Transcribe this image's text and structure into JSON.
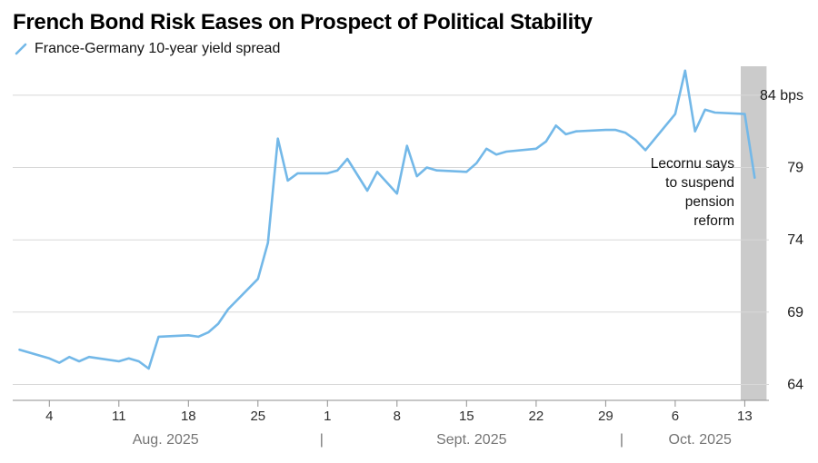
{
  "chart_data": {
    "type": "line",
    "title": "French Bond Risk Eases on Prospect of Political Stability",
    "legend": [
      {
        "label": "France-Germany 10-year yield spread",
        "color": "#73b8e8"
      }
    ],
    "unit": "bps",
    "ylim": [
      62.9,
      86.0
    ],
    "x_axis": {
      "start_date": "2025-08-01",
      "unit": "days_since_start"
    },
    "yticks": [
      {
        "value": 64,
        "label": "64"
      },
      {
        "value": 69,
        "label": "69"
      },
      {
        "value": 74,
        "label": "74"
      },
      {
        "value": 79,
        "label": "79"
      },
      {
        "value": 84,
        "label": "84 bps"
      }
    ],
    "xticks": [
      {
        "day": 3,
        "label": "4"
      },
      {
        "day": 10,
        "label": "11"
      },
      {
        "day": 17,
        "label": "18"
      },
      {
        "day": 24,
        "label": "25"
      },
      {
        "day": 31,
        "label": "1"
      },
      {
        "day": 38,
        "label": "8"
      },
      {
        "day": 45,
        "label": "15"
      },
      {
        "day": 52,
        "label": "22"
      },
      {
        "day": 59,
        "label": "29"
      },
      {
        "day": 66,
        "label": "6"
      },
      {
        "day": 73,
        "label": "13"
      }
    ],
    "month_labels": [
      {
        "day_center": 14.7,
        "label": "Aug. 2025"
      },
      {
        "day_center": 45.5,
        "label": "Sept. 2025"
      },
      {
        "day_center": 68.5,
        "label": "Oct. 2025"
      }
    ],
    "month_separators": [
      30.4,
      60.6
    ],
    "highlight_band": {
      "day_start": 72.6,
      "day_end": 75.2
    },
    "annotation": {
      "lines": [
        "Lecornu says",
        "to suspend",
        "pension",
        "reform"
      ]
    },
    "colors": {
      "line": "#73b8e8",
      "grid": "#d8d8d8",
      "axis": "#8f8f8f",
      "band": "#cbcbcb",
      "tick_text": "#2e2e2e",
      "y_text": "#1a1a1a",
      "month_text": "#757575",
      "annotation_text": "#111111"
    },
    "series": [
      {
        "name": "France-Germany 10-year yield spread",
        "color": "#73b8e8",
        "points": [
          [
            0,
            66.4
          ],
          [
            3,
            65.8
          ],
          [
            4,
            65.5
          ],
          [
            5,
            65.9
          ],
          [
            6,
            65.6
          ],
          [
            7,
            65.9
          ],
          [
            10,
            65.6
          ],
          [
            11,
            65.8
          ],
          [
            12,
            65.6
          ],
          [
            13,
            65.1
          ],
          [
            14,
            67.3
          ],
          [
            17,
            67.4
          ],
          [
            18,
            67.3
          ],
          [
            19,
            67.6
          ],
          [
            20,
            68.2
          ],
          [
            21,
            69.2
          ],
          [
            24,
            71.3
          ],
          [
            25,
            73.8
          ],
          [
            26,
            81.0
          ],
          [
            27,
            78.1
          ],
          [
            28,
            78.6
          ],
          [
            31,
            78.6
          ],
          [
            32,
            78.8
          ],
          [
            33,
            79.6
          ],
          [
            35,
            77.4
          ],
          [
            36,
            78.7
          ],
          [
            38,
            77.2
          ],
          [
            39,
            80.5
          ],
          [
            40,
            78.4
          ],
          [
            41,
            79.0
          ],
          [
            42,
            78.8
          ],
          [
            45,
            78.7
          ],
          [
            46,
            79.3
          ],
          [
            47,
            80.3
          ],
          [
            48,
            79.9
          ],
          [
            49,
            80.1
          ],
          [
            52,
            80.3
          ],
          [
            53,
            80.8
          ],
          [
            54,
            81.9
          ],
          [
            55,
            81.3
          ],
          [
            56,
            81.5
          ],
          [
            59,
            81.6
          ],
          [
            60,
            81.6
          ],
          [
            61,
            81.4
          ],
          [
            62,
            80.9
          ],
          [
            63,
            80.2
          ],
          [
            66,
            82.7
          ],
          [
            67,
            85.7
          ],
          [
            68,
            81.5
          ],
          [
            69,
            83.0
          ],
          [
            70,
            82.8
          ],
          [
            73,
            82.7
          ],
          [
            74,
            78.3
          ]
        ]
      }
    ]
  }
}
